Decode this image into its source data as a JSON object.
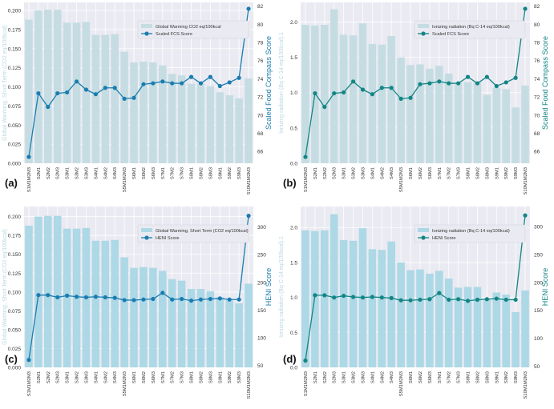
{
  "chart_data": [
    {
      "id": "a",
      "type": "bar+line",
      "panel_label": "(a)",
      "categories": [
        "S1M1M2M3",
        "S2M1",
        "S2M2",
        "S2M3",
        "S3M1",
        "S3M2",
        "S3M3",
        "S4M1",
        "S4M2",
        "S4M3",
        "S5M1M2M3",
        "S6M1",
        "S6M2",
        "S6M3",
        "S7M1",
        "S7M2",
        "S7M3",
        "S8M1",
        "S8M2",
        "S8M3",
        "S9M1",
        "S9M2",
        "S9M3",
        "S10M1M2M3"
      ],
      "bar_series": {
        "name": "Global Warming CO2 eq/100kcal",
        "values": [
          0.188,
          0.2,
          0.201,
          0.201,
          0.184,
          0.184,
          0.185,
          0.168,
          0.168,
          0.169,
          0.146,
          0.132,
          0.133,
          0.132,
          0.128,
          0.117,
          0.115,
          0.104,
          0.104,
          0.101,
          0.093,
          0.089,
          0.085,
          0.111
        ],
        "color": "#c5dde2"
      },
      "line_series": {
        "name": "Scaled FCS Score",
        "values": [
          65.4,
          72.4,
          70.9,
          72.4,
          72.5,
          73.7,
          72.8,
          72.3,
          73.0,
          73.0,
          71.8,
          71.9,
          73.4,
          73.5,
          73.7,
          73.5,
          73.5,
          74.2,
          73.5,
          74.2,
          73.2,
          73.6,
          74.1,
          81.7
        ],
        "color": "#1a7db0"
      },
      "ylabel": "Global Warming, Short Term (CO2 eq/100kcal)",
      "y2label": "Scaled Food Compass Score",
      "ylim": [
        0,
        0.2105
      ],
      "y2lim": [
        64.7,
        82.4
      ],
      "yticks": [
        "0.000",
        "0.025",
        "0.050",
        "0.075",
        "0.100",
        "0.125",
        "0.150",
        "0.175",
        "0.200"
      ],
      "y2ticks": [
        "66",
        "68",
        "70",
        "72",
        "74",
        "76",
        "78",
        "80",
        "82"
      ],
      "legend": "upper-right-center",
      "grid": true
    },
    {
      "id": "b",
      "type": "bar+line",
      "panel_label": "(b)",
      "categories": [
        "S1M1M2M3",
        "S2M1",
        "S2M2",
        "S2M3",
        "S3M1",
        "S3M2",
        "S3M3",
        "S4M1",
        "S4M2",
        "S4M3",
        "S5M1M2M3",
        "S6M1",
        "S6M2",
        "S6M3",
        "S7M1",
        "S7M2",
        "S7M3",
        "S8M1",
        "S8M2",
        "S8M3",
        "S9M1",
        "S9M2",
        "S9M3",
        "S10M1M2M3"
      ],
      "bar_series": {
        "name": "Ionizing radiation (Bq C-14 eq/100kcal)",
        "values": [
          1.96,
          1.95,
          1.96,
          2.18,
          1.82,
          1.81,
          1.98,
          1.69,
          1.68,
          1.8,
          1.5,
          1.39,
          1.4,
          1.34,
          1.38,
          1.27,
          1.14,
          1.15,
          1.15,
          0.97,
          1.07,
          1.05,
          0.79,
          1.1
        ],
        "color": "#c5dde2"
      },
      "line_series": {
        "name": "Scaled FCS Score",
        "values": [
          65.4,
          72.4,
          70.9,
          72.4,
          72.5,
          73.7,
          72.8,
          72.3,
          73.0,
          73.0,
          71.8,
          71.9,
          73.4,
          73.5,
          73.7,
          73.5,
          73.5,
          74.2,
          73.5,
          74.2,
          73.2,
          73.6,
          74.1,
          81.7
        ],
        "color": "#138585"
      },
      "ylabel": "Ionizing radiation (Bq C-14 eq/100kcal).1",
      "y2label": "Scaled Food Compass Score",
      "ylim": [
        0,
        2.277
      ],
      "y2lim": [
        64.7,
        82.4
      ],
      "yticks": [
        "0.0",
        "0.5",
        "1.0",
        "1.5",
        "2.0"
      ],
      "y2ticks": [
        "66",
        "68",
        "70",
        "72",
        "74",
        "76",
        "78",
        "80",
        "82"
      ],
      "legend": "upper-right-center",
      "grid": true
    },
    {
      "id": "c",
      "type": "bar+line",
      "panel_label": "(c)",
      "categories": [
        "S1M1M2M3",
        "S2M1",
        "S2M2",
        "S2M3",
        "S3M1",
        "S3M2",
        "S3M3",
        "S4M1",
        "S4M2",
        "S4M3",
        "S5M1M2M3",
        "S6M1",
        "S6M2",
        "S6M3",
        "S7M1",
        "S7M2",
        "S7M3",
        "S8M1",
        "S8M2",
        "S8M3",
        "S9M1",
        "S9M2",
        "S9M3",
        "S10M1M2M3"
      ],
      "bar_series": {
        "name": "Global Warming, Short Term (CO2 eq/100kcal)",
        "values": [
          0.188,
          0.2,
          0.201,
          0.201,
          0.184,
          0.184,
          0.185,
          0.168,
          0.168,
          0.169,
          0.146,
          0.132,
          0.133,
          0.132,
          0.128,
          0.117,
          0.115,
          0.104,
          0.104,
          0.101,
          0.093,
          0.089,
          0.085,
          0.111
        ],
        "color": "#add8e6"
      },
      "line_series": {
        "name": "HENI Score",
        "values": [
          60,
          177,
          177,
          173,
          176,
          174,
          173,
          174,
          173,
          172,
          168,
          168,
          169,
          170,
          181,
          169,
          170,
          167,
          169,
          170,
          171,
          169,
          169,
          320
        ],
        "color": "#1a7db0"
      },
      "ylabel": "Global Warming, Short Term (CO2 eq/100kcal)",
      "y2label": "HENI Score",
      "ylim": [
        0,
        0.2134
      ],
      "y2lim": [
        46.6,
        336.8
      ],
      "yticks": [
        "0.000",
        "0.025",
        "0.050",
        "0.075",
        "0.100",
        "0.125",
        "0.150",
        "0.175",
        "0.200"
      ],
      "y2ticks": [
        "50",
        "100",
        "150",
        "200",
        "250",
        "300"
      ],
      "legend": "upper-right-center",
      "grid": true
    },
    {
      "id": "d",
      "type": "bar+line",
      "panel_label": "(d)",
      "categories": [
        "S1M1M2M3",
        "S2M1",
        "S2M2",
        "S2M3",
        "S3M1",
        "S3M2",
        "S3M3",
        "S4M1",
        "S4M2",
        "S4M3",
        "S5M1M2M3",
        "S6M1",
        "S6M2",
        "S6M3",
        "S7M1",
        "S7M2",
        "S7M3",
        "S8M1",
        "S8M2",
        "S8M3",
        "S9M1",
        "S9M2",
        "S9M3",
        "S10M1M2M3"
      ],
      "bar_series": {
        "name": "Ionizing radiation (Bq C-14 eq/100kcal)",
        "values": [
          1.96,
          1.95,
          1.96,
          2.19,
          1.82,
          1.81,
          1.99,
          1.69,
          1.68,
          1.8,
          1.5,
          1.39,
          1.4,
          1.34,
          1.38,
          1.27,
          1.14,
          1.15,
          1.15,
          0.97,
          1.07,
          1.04,
          0.79,
          1.1
        ],
        "color": "#add8e6"
      },
      "line_series": {
        "name": "HENI Score",
        "values": [
          60,
          177,
          177,
          173,
          176,
          174,
          173,
          174,
          173,
          172,
          168,
          168,
          169,
          170,
          181,
          169,
          170,
          167,
          169,
          170,
          171,
          169,
          169,
          320
        ],
        "color": "#138585"
      },
      "ylabel": "Ionizing radiation (Bq C-14 eq/100kcal).1",
      "y2label": "HENI Score",
      "ylim": [
        0,
        2.3
      ],
      "y2lim": [
        47.8,
        336
      ],
      "yticks": [
        "0.0",
        "0.5",
        "1.0",
        "1.5",
        "2.0"
      ],
      "y2ticks": [
        "50",
        "100",
        "150",
        "200",
        "250",
        "300"
      ],
      "legend": "upper-right-center",
      "grid": true
    }
  ]
}
